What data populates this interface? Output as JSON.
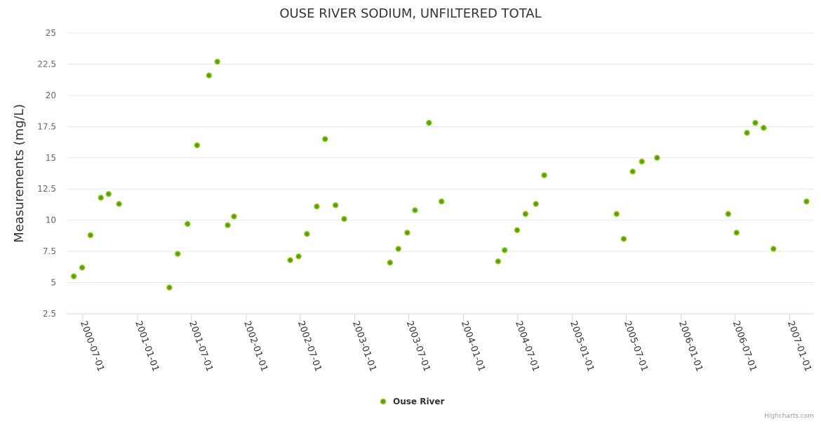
{
  "chart_data": {
    "type": "scatter",
    "title": "OUSE RIVER SODIUM, UNFILTERED TOTAL",
    "xlabel": "",
    "ylabel": "Measurements (mg/L)",
    "ylim": [
      2.5,
      25
    ],
    "yticks": [
      "2.5",
      "5",
      "7.5",
      "10",
      "12.5",
      "15",
      "17.5",
      "20",
      "22.5",
      "25"
    ],
    "xlim": [
      "2000-05-08",
      "2007-03-23"
    ],
    "xticks": [
      "2000-07-01",
      "2001-01-01",
      "2001-07-01",
      "2002-01-01",
      "2002-07-01",
      "2003-01-01",
      "2003-07-01",
      "2004-01-01",
      "2004-07-01",
      "2005-01-01",
      "2005-07-01",
      "2006-01-01",
      "2006-07-01",
      "2007-01-01"
    ],
    "grid": true,
    "legend_position": "bottom-center",
    "credits": "Highcharts.com",
    "series": [
      {
        "name": "Ouse River",
        "color": "#5a9e00",
        "border_color": "#90c829",
        "points": [
          [
            "2000-06-01",
            5.5
          ],
          [
            "2000-06-29",
            6.2
          ],
          [
            "2000-07-27",
            8.8
          ],
          [
            "2000-08-31",
            11.8
          ],
          [
            "2000-09-26",
            12.1
          ],
          [
            "2000-10-31",
            11.3
          ],
          [
            "2001-04-18",
            4.6
          ],
          [
            "2001-05-16",
            7.3
          ],
          [
            "2001-06-18",
            9.7
          ],
          [
            "2001-07-20",
            16.0
          ],
          [
            "2001-08-29",
            21.6
          ],
          [
            "2001-09-26",
            22.7
          ],
          [
            "2001-10-31",
            9.6
          ],
          [
            "2001-11-21",
            10.3
          ],
          [
            "2002-05-29",
            6.8
          ],
          [
            "2002-06-26",
            7.1
          ],
          [
            "2002-07-24",
            8.9
          ],
          [
            "2002-08-26",
            11.1
          ],
          [
            "2002-09-23",
            16.5
          ],
          [
            "2002-10-28",
            11.2
          ],
          [
            "2002-11-26",
            10.1
          ],
          [
            "2003-04-29",
            6.6
          ],
          [
            "2003-05-27",
            7.7
          ],
          [
            "2003-06-26",
            9.0
          ],
          [
            "2003-07-22",
            10.8
          ],
          [
            "2003-09-07",
            17.8
          ],
          [
            "2003-10-19",
            11.5
          ],
          [
            "2004-04-26",
            6.7
          ],
          [
            "2004-05-18",
            7.6
          ],
          [
            "2004-06-29",
            9.2
          ],
          [
            "2004-07-27",
            10.5
          ],
          [
            "2004-08-31",
            11.3
          ],
          [
            "2004-09-28",
            13.6
          ],
          [
            "2005-05-29",
            10.5
          ],
          [
            "2005-06-22",
            8.5
          ],
          [
            "2005-07-22",
            13.9
          ],
          [
            "2005-08-22",
            14.7
          ],
          [
            "2005-10-12",
            15.0
          ],
          [
            "2006-06-08",
            10.5
          ],
          [
            "2006-07-06",
            9.0
          ],
          [
            "2006-08-10",
            17.0
          ],
          [
            "2006-09-07",
            17.8
          ],
          [
            "2006-10-05",
            17.4
          ],
          [
            "2006-11-07",
            7.7
          ],
          [
            "2007-02-26",
            11.5
          ]
        ]
      }
    ]
  }
}
